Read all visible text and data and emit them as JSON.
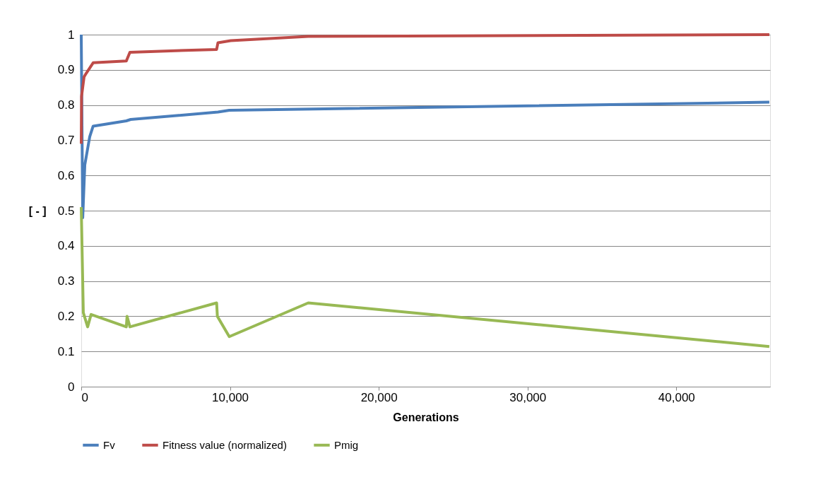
{
  "chart_data": {
    "type": "line",
    "xlabel": "Generations",
    "ylabel": "[ - ]",
    "xlim": [
      0,
      46300
    ],
    "ylim": [
      0,
      1
    ],
    "xticks": [
      0,
      {
        "value": 10000,
        "label": "10,000"
      },
      {
        "value": 20000,
        "label": "20,000"
      },
      {
        "value": 30000,
        "label": "30,000"
      },
      {
        "value": 40000,
        "label": "40,000"
      }
    ],
    "yticks": [
      0,
      0.1,
      0.2,
      0.3,
      0.4,
      0.5,
      0.6,
      0.7,
      0.8,
      0.9,
      1
    ],
    "grid": "y",
    "legend": "bottom",
    "marker": "none",
    "line_style": "solid",
    "series": [
      {
        "name": "Fv",
        "color": "#4a7ebb",
        "x": [
          0,
          100,
          240,
          570,
          800,
          3030,
          3320,
          9190,
          9950,
          46250
        ],
        "values": [
          1.0,
          0.48,
          0.63,
          0.71,
          0.74,
          0.755,
          0.759,
          0.78,
          0.785,
          0.808
        ]
      },
      {
        "name": "Fitness value (normalized)",
        "color": "#be4b48",
        "x": [
          0,
          20,
          190,
          330,
          800,
          3030,
          3270,
          9100,
          9190,
          10050,
          15260,
          46250
        ],
        "values": [
          0.69,
          0.825,
          0.88,
          0.89,
          0.92,
          0.925,
          0.95,
          0.958,
          0.977,
          0.983,
          0.995,
          1.0
        ]
      },
      {
        "name": "Pmig",
        "color": "#98b954",
        "x": [
          0,
          140,
          430,
          660,
          3030,
          3080,
          3270,
          9100,
          9150,
          9950,
          15260,
          46250
        ],
        "values": [
          0.51,
          0.21,
          0.17,
          0.205,
          0.17,
          0.2,
          0.17,
          0.238,
          0.2,
          0.142,
          0.238,
          0.114
        ]
      }
    ]
  }
}
